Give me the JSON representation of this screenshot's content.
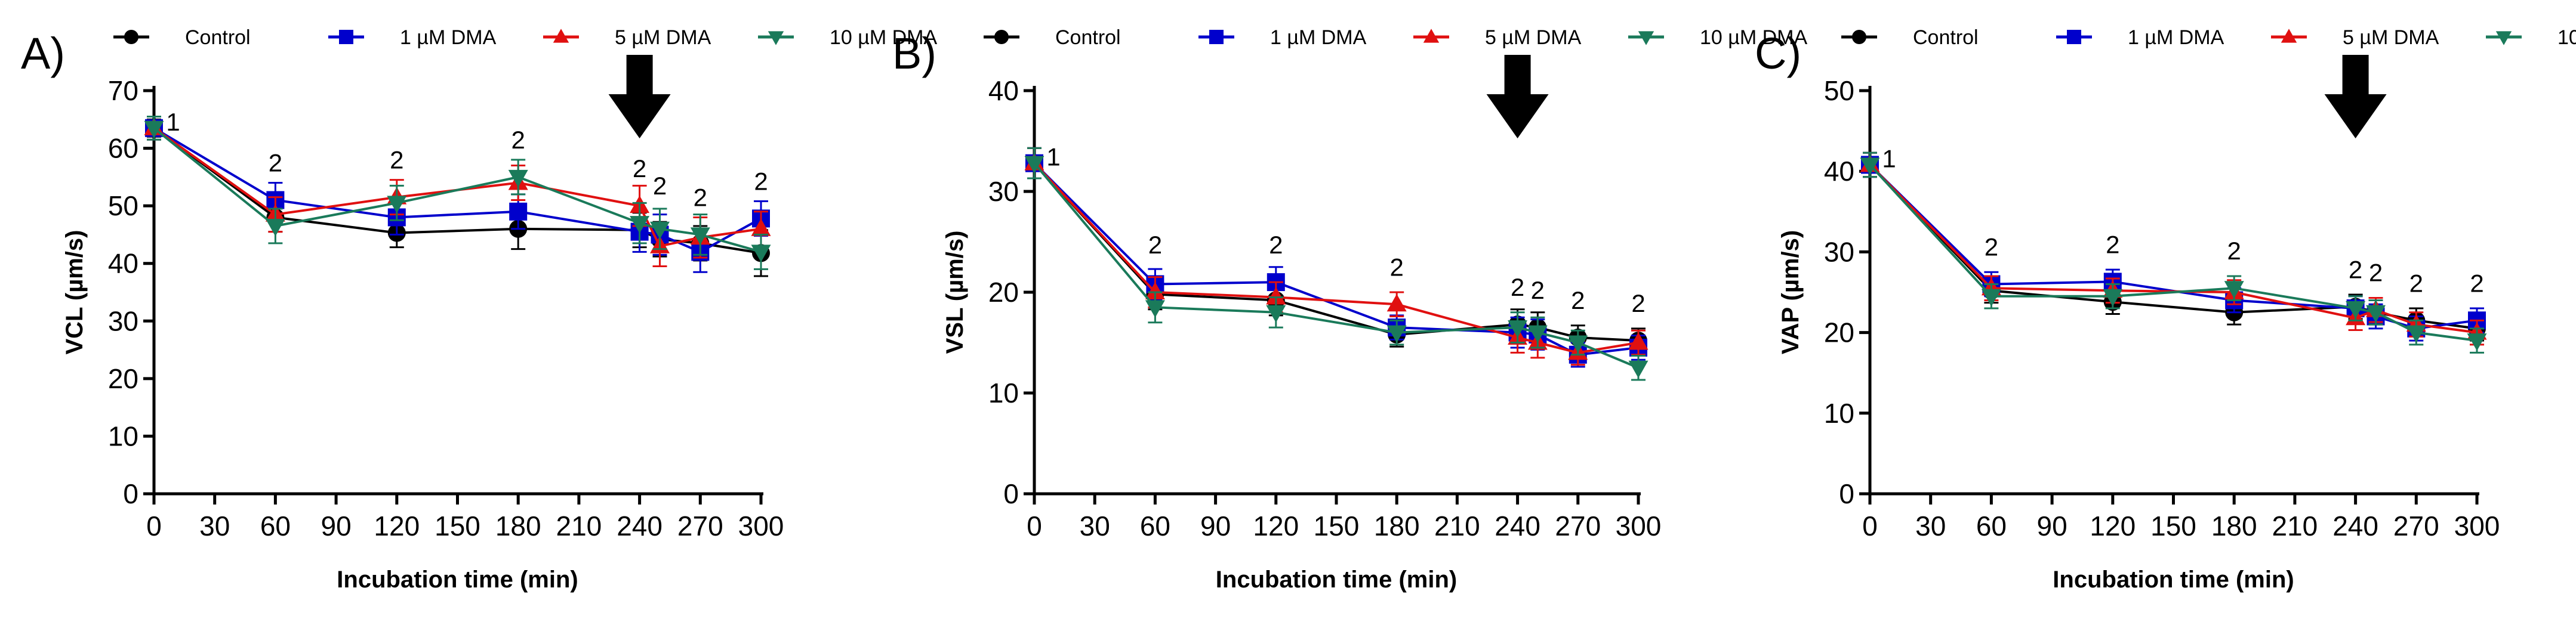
{
  "series_style": [
    {
      "name": "Control",
      "color": "#000000",
      "marker": "circle"
    },
    {
      "name": "1 µM DMA",
      "color": "#0000CC",
      "marker": "square"
    },
    {
      "name": "5 µM DMA",
      "color": "#E01010",
      "marker": "triangle-up"
    },
    {
      "name": "10 µM DMA",
      "color": "#1A7A5A",
      "marker": "triangle-down"
    }
  ],
  "chart_data": [
    {
      "panel": "A)",
      "type": "line",
      "xlabel": "Incubation time (min)",
      "ylabel": "VCL (µm/s)",
      "xlim": [
        0,
        300
      ],
      "ylim": [
        0,
        70
      ],
      "xticks": [
        0,
        30,
        60,
        90,
        120,
        150,
        180,
        210,
        240,
        270,
        300
      ],
      "yticks": [
        0,
        10,
        20,
        30,
        40,
        50,
        60,
        70
      ],
      "x": [
        0,
        60,
        120,
        180,
        240,
        250,
        270,
        300
      ],
      "series": [
        {
          "name": "Control",
          "values": [
            63.5,
            48,
            45.3,
            46,
            45.8,
            44.2,
            43.5,
            41.8
          ],
          "err": [
            1.5,
            2.5,
            2.5,
            3.5,
            3,
            3,
            3,
            4
          ]
        },
        {
          "name": "1 µM DMA",
          "values": [
            63.5,
            51,
            48,
            49,
            45.5,
            45,
            42,
            47.8
          ],
          "err": [
            2,
            3,
            3,
            3,
            3.5,
            3.5,
            3.5,
            3
          ]
        },
        {
          "name": "5 µM DMA",
          "values": [
            63.5,
            48.5,
            51.5,
            54,
            50,
            43,
            44.5,
            46
          ],
          "err": [
            2,
            3,
            3,
            3,
            3.5,
            3.5,
            3.5,
            3
          ]
        },
        {
          "name": "10 µM DMA",
          "values": [
            63.5,
            46.5,
            50.5,
            55,
            47,
            46,
            45,
            42
          ],
          "err": [
            2,
            3,
            3,
            3,
            3.5,
            3.5,
            3.5,
            3
          ]
        }
      ],
      "annotations": [
        {
          "x": 0,
          "y": 63.5,
          "text": "1"
        },
        {
          "x": 60,
          "y": 51,
          "text": "2"
        },
        {
          "x": 120,
          "y": 51.5,
          "text": "2"
        },
        {
          "x": 180,
          "y": 55,
          "text": "2"
        },
        {
          "x": 240,
          "y": 50,
          "text": "2"
        },
        {
          "x": 250,
          "y": 47,
          "text": "2"
        },
        {
          "x": 270,
          "y": 45,
          "text": "2"
        },
        {
          "x": 300,
          "y": 47.8,
          "text": "2"
        }
      ],
      "arrow_x": 240
    },
    {
      "panel": "B)",
      "type": "line",
      "xlabel": "Incubation time (min)",
      "ylabel": "VSL (µm/s)",
      "xlim": [
        0,
        300
      ],
      "ylim": [
        0,
        40
      ],
      "xticks": [
        0,
        30,
        60,
        90,
        120,
        150,
        180,
        210,
        240,
        270,
        300
      ],
      "yticks": [
        0,
        10,
        20,
        30,
        40
      ],
      "x": [
        0,
        60,
        120,
        180,
        240,
        250,
        270,
        300
      ],
      "series": [
        {
          "name": "Control",
          "values": [
            32.8,
            19.8,
            19.2,
            15.8,
            16.8,
            16.5,
            15.5,
            15.2
          ],
          "err": [
            1.5,
            1.5,
            1.5,
            1.2,
            1.5,
            1.5,
            1.2,
            1.2
          ]
        },
        {
          "name": "1 µM DMA",
          "values": [
            32.8,
            20.8,
            21,
            16.5,
            16,
            15.8,
            13.8,
            14.5
          ],
          "err": [
            1.5,
            1.5,
            1.5,
            1.2,
            1.5,
            1.5,
            1.2,
            1.2
          ]
        },
        {
          "name": "5 µM DMA",
          "values": [
            32.8,
            20,
            19.5,
            18.8,
            15.5,
            15,
            14,
            15
          ],
          "err": [
            1.5,
            1.5,
            1.5,
            1.2,
            1.5,
            1.5,
            1.2,
            1.2
          ]
        },
        {
          "name": "10 µM DMA",
          "values": [
            32.8,
            18.5,
            18,
            16,
            16.5,
            16,
            15,
            12.5
          ],
          "err": [
            1.5,
            1.5,
            1.5,
            1.2,
            1.5,
            1.5,
            1.2,
            1.2
          ]
        }
      ],
      "annotations": [
        {
          "x": 0,
          "y": 32.8,
          "text": "1"
        },
        {
          "x": 60,
          "y": 21,
          "text": "2"
        },
        {
          "x": 120,
          "y": 21,
          "text": "2"
        },
        {
          "x": 180,
          "y": 18.8,
          "text": "2"
        },
        {
          "x": 240,
          "y": 16.8,
          "text": "2"
        },
        {
          "x": 250,
          "y": 16.5,
          "text": "2"
        },
        {
          "x": 270,
          "y": 15.5,
          "text": "2"
        },
        {
          "x": 300,
          "y": 15.2,
          "text": "2"
        }
      ],
      "arrow_x": 240
    },
    {
      "panel": "C)",
      "type": "line",
      "xlabel": "Incubation time (min)",
      "ylabel": "VAP (µm/s)",
      "xlim": [
        0,
        300
      ],
      "ylim": [
        0,
        50
      ],
      "xticks": [
        0,
        30,
        60,
        90,
        120,
        150,
        180,
        210,
        240,
        270,
        300
      ],
      "yticks": [
        0,
        10,
        20,
        30,
        40,
        50
      ],
      "x": [
        0,
        60,
        120,
        180,
        240,
        250,
        270,
        300
      ],
      "series": [
        {
          "name": "Control",
          "values": [
            40.8,
            25.2,
            23.8,
            22.5,
            23.2,
            22.5,
            21.5,
            20.5
          ],
          "err": [
            1.5,
            1.5,
            1.5,
            1.5,
            1.5,
            1.5,
            1.5,
            1.5
          ]
        },
        {
          "name": "1 µM DMA",
          "values": [
            40.8,
            26,
            26.3,
            24,
            23,
            22,
            20.5,
            21.5
          ],
          "err": [
            1.5,
            1.5,
            1.5,
            1.5,
            1.5,
            1.5,
            1.5,
            1.5
          ]
        },
        {
          "name": "5 µM DMA",
          "values": [
            40.8,
            25.5,
            25.2,
            25,
            21.8,
            22.8,
            21,
            20
          ],
          "err": [
            1.5,
            1.5,
            1.5,
            1.5,
            1.5,
            1.5,
            1.5,
            1.5
          ]
        },
        {
          "name": "10 µM DMA",
          "values": [
            40.8,
            24.5,
            24.5,
            25.5,
            23,
            22.5,
            20,
            19
          ],
          "err": [
            1.5,
            1.5,
            1.5,
            1.5,
            1.5,
            1.5,
            1.5,
            1.5
          ]
        }
      ],
      "annotations": [
        {
          "x": 0,
          "y": 40.8,
          "text": "1"
        },
        {
          "x": 60,
          "y": 26,
          "text": "2"
        },
        {
          "x": 120,
          "y": 26.3,
          "text": "2"
        },
        {
          "x": 180,
          "y": 25.5,
          "text": "2"
        },
        {
          "x": 240,
          "y": 23.2,
          "text": "2"
        },
        {
          "x": 250,
          "y": 22.8,
          "text": "2"
        },
        {
          "x": 270,
          "y": 21.5,
          "text": "2"
        },
        {
          "x": 300,
          "y": 21.5,
          "text": "2"
        }
      ],
      "arrow_x": 240
    }
  ]
}
